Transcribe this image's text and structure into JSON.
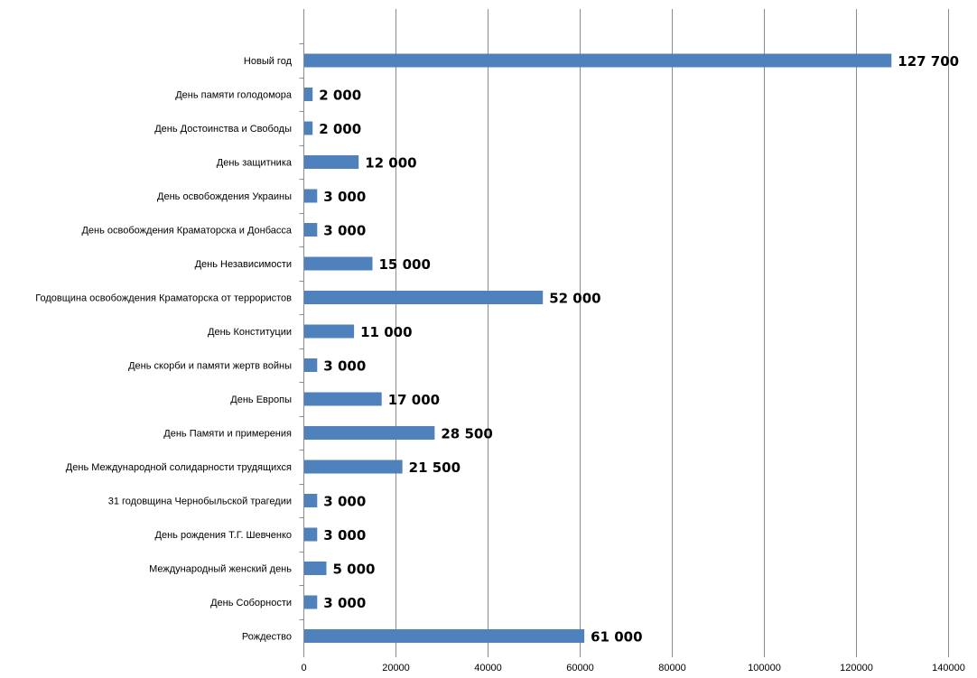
{
  "chart_data": {
    "type": "bar",
    "orientation": "horizontal",
    "categories": [
      "Новый год",
      "День  памяти голодомора",
      "День  Достоинства и Свободы",
      "День  защитника",
      "День  освобождения  Украины",
      "День  освобождения  Краматорска и Донбасса",
      "День  Независимости",
      "Годовщина освобождения  Краматорска от террористов",
      "День  Конституции",
      "День  скорби и памяти жертв войны",
      "День  Европы",
      "День  Памяти и примерения",
      "День  Международной  солидарности трудящихся",
      "31 годовщина Чернобыльской трагедии",
      "День  рождения  Т.Г.  Шевченко",
      "Международный  женский день",
      "День  Соборности",
      "Рождество"
    ],
    "values": [
      127700,
      2000,
      2000,
      12000,
      3000,
      3000,
      15000,
      52000,
      11000,
      3000,
      17000,
      28500,
      21500,
      3000,
      3000,
      5000,
      3000,
      61000
    ],
    "data_labels": [
      "127 700",
      "2 000",
      "2 000",
      "12 000",
      "3 000",
      "3 000",
      "15 000",
      "52 000",
      "11 000",
      "3 000",
      "17 000",
      "28 500",
      "21 500",
      "3 000",
      "3 000",
      "5 000",
      "3 000",
      "61 000"
    ],
    "x_ticks": [
      0,
      20000,
      40000,
      60000,
      80000,
      100000,
      120000,
      140000
    ],
    "x_tick_labels": [
      "0",
      "20000",
      "40000",
      "60000",
      "80000",
      "100000",
      "120000",
      "140000"
    ],
    "xlim": [
      0,
      140000
    ],
    "grid": "vertical",
    "legend": "none",
    "bar_color": "#4f81bd",
    "title": "",
    "xlabel": "",
    "ylabel": ""
  }
}
